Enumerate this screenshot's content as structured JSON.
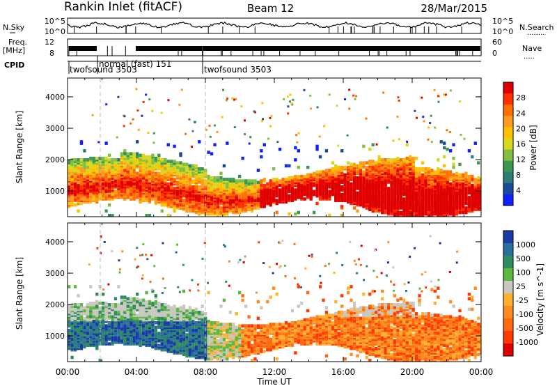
{
  "header": {
    "station": "Rankin Inlet (fitACF)",
    "beam": "Beam 12",
    "date": "28/Mar/2015"
  },
  "left_labels": {
    "nsky": "N.Sky",
    "freq_line1": "Freq.",
    "freq_line2": "[MHz]",
    "cpid": "CPID"
  },
  "right_labels": {
    "nsearch": "N.Search",
    "nsearch_dots": "........",
    "nave": "Nave",
    "nave_dots": "....."
  },
  "strip_ticks": {
    "noise_left": [
      "10^5",
      "10^0"
    ],
    "noise_right": [
      "10^5",
      "10^0"
    ],
    "freq_left": [
      "12",
      "8"
    ],
    "nave_right": [
      "60",
      "0"
    ]
  },
  "cpid_segments": [
    {
      "label": "twofsound 3503",
      "start_hour": 0.1
    },
    {
      "label": "normal (fast) 151",
      "start_hour": 1.9
    },
    {
      "label": "twofsound 3503",
      "start_hour": 8.0
    }
  ],
  "chart_data": [
    {
      "type": "heatmap",
      "name": "power-panel",
      "xlabel": "Time UT",
      "ylabel": "Slant Range [km]",
      "xlim": [
        0,
        24
      ],
      "ylim": [
        180,
        4600
      ],
      "xtick_labels": [
        "00:00",
        "04:00",
        "08:00",
        "12:00",
        "16:00",
        "20:00",
        "00:00"
      ],
      "ytick_labels": [
        "1000",
        "2000",
        "3000",
        "4000"
      ],
      "colorbar": {
        "label": "Power [dB]",
        "tick_labels": [
          "28",
          "24",
          "20",
          "16",
          "12",
          "8",
          "4"
        ],
        "colors_top_to_bottom": [
          "#e00000",
          "#ff3000",
          "#ff7000",
          "#ff9a20",
          "#ffc000",
          "#d8d820",
          "#80c040",
          "#3c9850",
          "#2e7e78",
          "#1c4a9a",
          "#1020ff"
        ]
      },
      "dominant_band_km": {
        "lower": 500,
        "upper": 2300
      },
      "peak_power_time_range_hours": [
        12,
        24
      ]
    },
    {
      "type": "heatmap",
      "name": "velocity-panel",
      "xlabel": "Time UT",
      "ylabel": "Slant Range [km]",
      "xlim": [
        0,
        24
      ],
      "ylim": [
        180,
        4600
      ],
      "xtick_labels": [
        "00:00",
        "04:00",
        "08:00",
        "12:00",
        "16:00",
        "20:00",
        "00:00"
      ],
      "ytick_labels": [
        "1000",
        "2000",
        "3000",
        "4000"
      ],
      "colorbar": {
        "label": "Velocity [m s^-1]",
        "tick_labels": [
          "1000",
          "500",
          "100",
          "25",
          "-25",
          "-100",
          "-500",
          "-1000"
        ],
        "colors_top_to_bottom": [
          "#1a3aa6",
          "#2b6f9e",
          "#2e8c5e",
          "#5cb840",
          "#c8c8c0",
          "#ffb030",
          "#ff8a20",
          "#ff6a10",
          "#ff3a00",
          "#e00000"
        ]
      },
      "velocity_sign_by_time": {
        "before_08UT": "positive (blue/green)",
        "after_10UT": "negative (orange/red)"
      }
    }
  ]
}
